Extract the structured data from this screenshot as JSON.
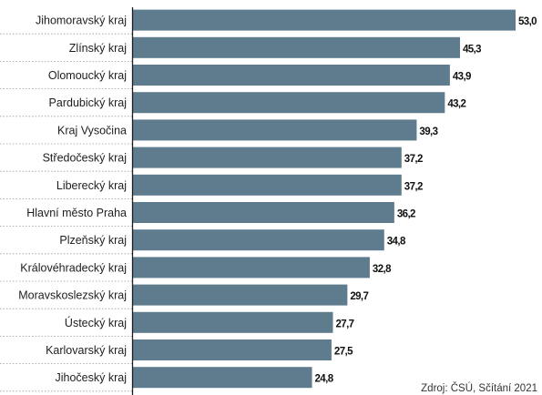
{
  "chart_data": {
    "type": "bar",
    "orientation": "horizontal",
    "categories": [
      "Jihomoravský kraj",
      "Zlínský kraj",
      "Olomoucký kraj",
      "Pardubický kraj",
      "Kraj Vysočina",
      "Středočeský kraj",
      "Liberecký kraj",
      "Hlavní město Praha",
      "Plzeňský kraj",
      "Královéhradecký kraj",
      "Moravskoslezský kraj",
      "Ústecký kraj",
      "Karlovarský kraj",
      "Jihočeský kraj"
    ],
    "values": [
      53.0,
      45.3,
      43.9,
      43.2,
      39.3,
      37.2,
      37.2,
      36.2,
      34.8,
      32.8,
      29.7,
      27.7,
      27.5,
      24.8
    ],
    "value_labels": [
      "53,0",
      "45,3",
      "43,9",
      "43,2",
      "39,3",
      "37,2",
      "37,2",
      "36,2",
      "34,8",
      "32,8",
      "29,7",
      "27,7",
      "27,5",
      "24,8"
    ],
    "xlim": [
      0,
      53.0
    ],
    "grid": false,
    "bar_color": "#5e7c8d",
    "source": "Zdroj: ČSÚ, Sčítání 2021"
  }
}
